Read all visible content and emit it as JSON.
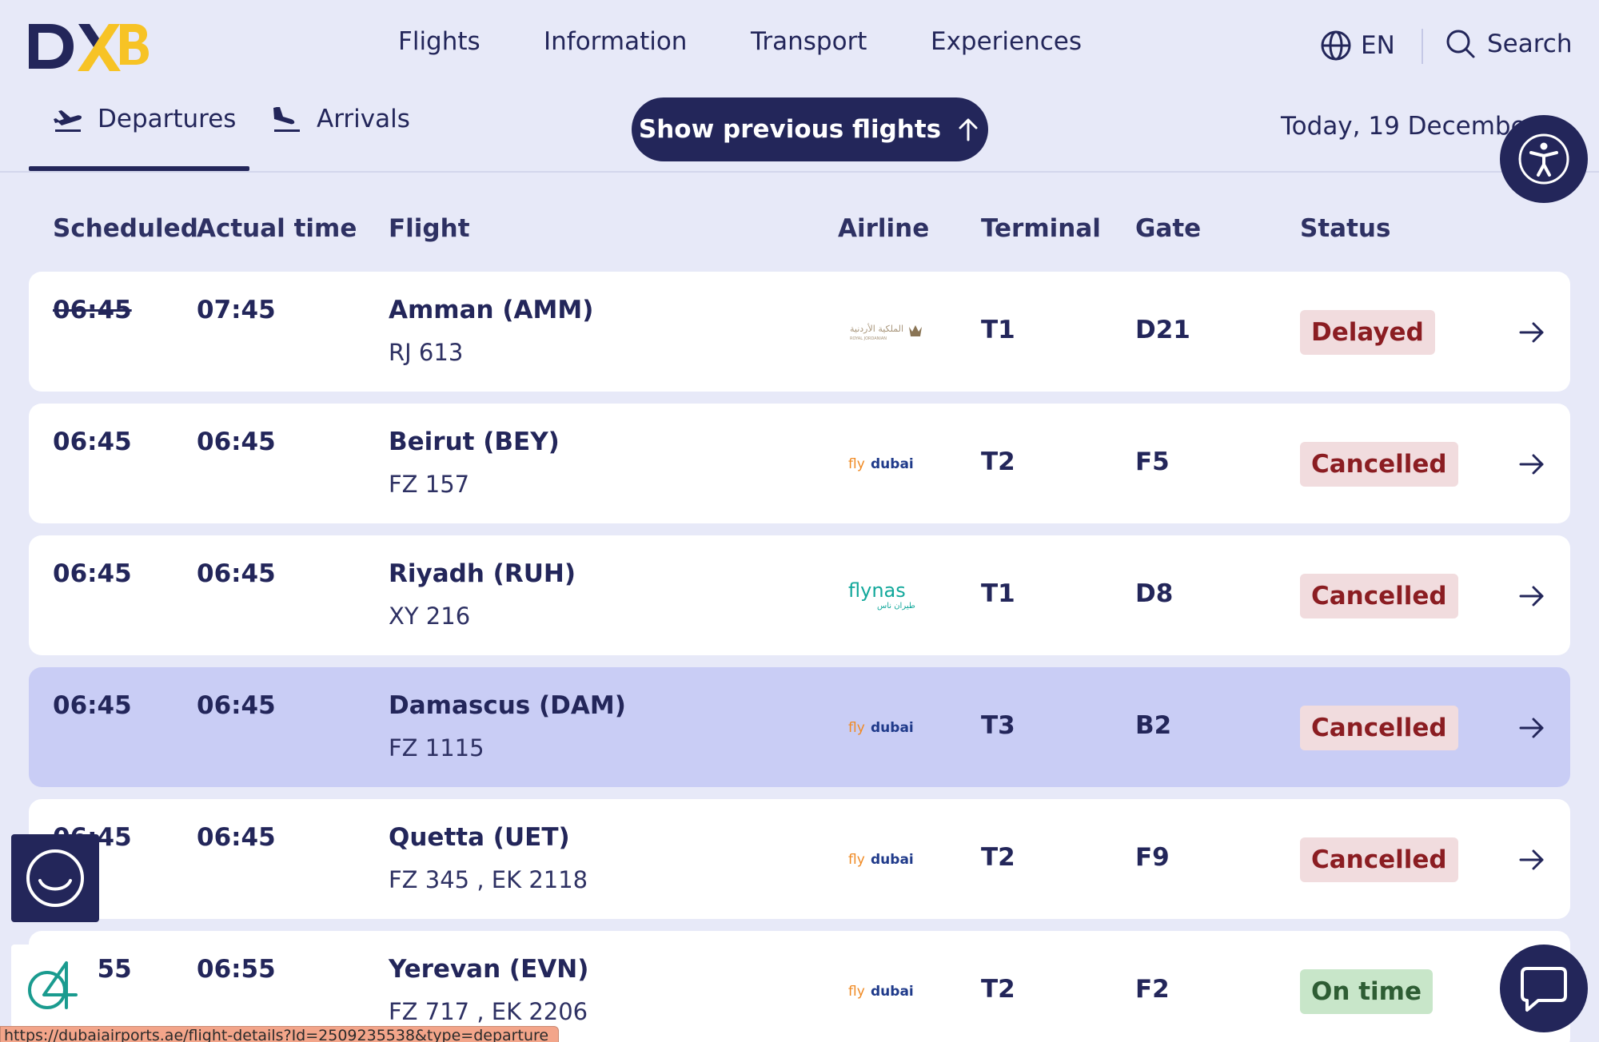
{
  "header": {
    "logo_text": "DXB",
    "nav": [
      "Flights",
      "Information",
      "Transport",
      "Experiences"
    ],
    "language": "EN",
    "search_label": "Search",
    "tabs": {
      "departures": "Departures",
      "arrivals": "Arrivals"
    },
    "active_tab": "Departures",
    "show_previous_label": "Show previous flights",
    "date": "Today, 19 December"
  },
  "table": {
    "columns": {
      "scheduled": "Scheduled",
      "actual": "Actual time",
      "flight": "Flight",
      "airline": "Airline",
      "terminal": "Terminal",
      "gate": "Gate",
      "status": "Status"
    },
    "rows": [
      {
        "scheduled": "06:45",
        "scheduled_struck": true,
        "actual": "07:45",
        "destination": "Amman (AMM)",
        "flight_no": "RJ 613",
        "airline_logo": "royal-jordanian",
        "terminal": "T1",
        "gate": "D21",
        "status": "Delayed",
        "status_color": "#8b1d22"
      },
      {
        "scheduled": "06:45",
        "scheduled_struck": false,
        "actual": "06:45",
        "destination": "Beirut (BEY)",
        "flight_no": "FZ 157",
        "airline_logo": "flydubai",
        "terminal": "T2",
        "gate": "F5",
        "status": "Cancelled",
        "status_color": "#8b1d22"
      },
      {
        "scheduled": "06:45",
        "scheduled_struck": false,
        "actual": "06:45",
        "destination": "Riyadh (RUH)",
        "flight_no": "XY 216",
        "airline_logo": "flynas",
        "terminal": "T1",
        "gate": "D8",
        "status": "Cancelled",
        "status_color": "#8b1d22"
      },
      {
        "scheduled": "06:45",
        "scheduled_struck": false,
        "actual": "06:45",
        "destination": "Damascus (DAM)",
        "flight_no": "FZ 1115",
        "airline_logo": "flydubai",
        "terminal": "T3",
        "gate": "B2",
        "status": "Cancelled",
        "status_color": "#8b1d22",
        "highlighted": true
      },
      {
        "scheduled": "06:45",
        "scheduled_struck": false,
        "actual": "06:45",
        "destination": "Quetta (UET)",
        "flight_no": "FZ 345 , EK 2118",
        "airline_logo": "flydubai",
        "terminal": "T2",
        "gate": "F9",
        "status": "Cancelled",
        "status_color": "#8b1d22"
      },
      {
        "scheduled": "06:55",
        "scheduled_struck": false,
        "actual": "06:55",
        "destination": "Yerevan (EVN)",
        "flight_no": "FZ 717 , EK 2206",
        "airline_logo": "flydubai",
        "terminal": "T2",
        "gate": "F2",
        "status": "On time",
        "status_color": "#2e5d34"
      }
    ]
  },
  "airline_logos": {
    "flydubai": {
      "fly": "fly",
      "dubai": "dubai"
    },
    "flynas": {
      "name": "flynas",
      "arabic": "طيران ناس"
    },
    "royal_jordanian": {
      "arabic": "الملكية الأردنية",
      "latin": "ROYAL JORDANIAN"
    }
  },
  "status_bar_url": "https://dubaiairports.ae/flight-details?Id=2509235538&type=departure",
  "colors": {
    "brand_navy": "#23265a",
    "brand_yellow": "#f7c325",
    "page_bg": "#e7e9f8",
    "row_highlight": "#c9cdf5",
    "status_red_bg": "#f1dcde",
    "status_green_bg": "#c8e6c9"
  }
}
